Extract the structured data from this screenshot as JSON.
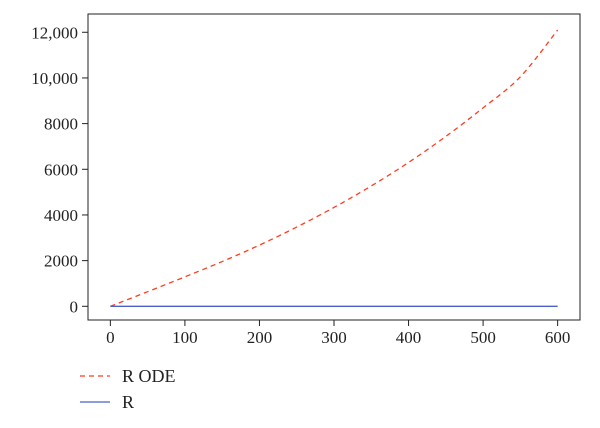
{
  "chart_data": {
    "type": "line",
    "title": "",
    "xlabel": "",
    "ylabel": "",
    "xlim": [
      -30,
      630
    ],
    "ylim": [
      -600,
      12800
    ],
    "x_ticks": [
      0,
      100,
      200,
      300,
      400,
      500,
      600
    ],
    "x_tick_labels": [
      "0",
      "100",
      "200",
      "300",
      "400",
      "500",
      "600"
    ],
    "y_ticks": [
      0,
      2000,
      4000,
      6000,
      8000,
      10000,
      12000
    ],
    "y_tick_labels": [
      "0",
      "2000",
      "4000",
      "6000",
      "8000",
      "10,000",
      "12,000"
    ],
    "grid": false,
    "legend_position": "bottom-left",
    "series": [
      {
        "name": "R ODE",
        "color": "#ff3c1e",
        "style": "dashed",
        "x": [
          0,
          50,
          100,
          150,
          200,
          250,
          300,
          350,
          400,
          450,
          500,
          550,
          600
        ],
        "y": [
          0,
          640,
          1290,
          1960,
          2680,
          3470,
          4330,
          5270,
          6300,
          7440,
          8690,
          10050,
          12100
        ]
      },
      {
        "name": "R",
        "color": "#4b5fcf",
        "style": "solid",
        "x": [
          0,
          100,
          200,
          300,
          400,
          500,
          600
        ],
        "y": [
          0,
          0,
          0,
          0,
          0,
          0,
          0
        ]
      }
    ]
  }
}
